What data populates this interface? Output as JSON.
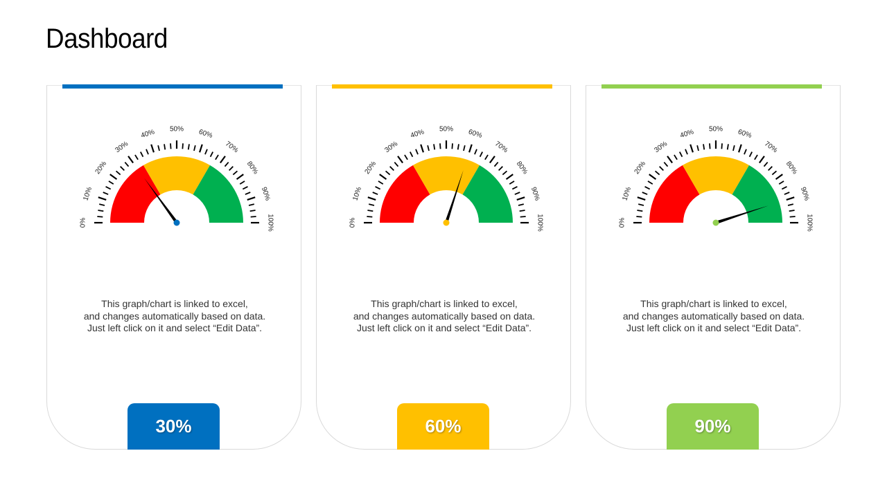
{
  "page": {
    "title": "Dashboard"
  },
  "chart_data": [
    {
      "type": "gauge",
      "value": 30,
      "accent": "#0070C0",
      "range": [
        0,
        100
      ],
      "ticks": [
        "0%",
        "10%",
        "20%",
        "30%",
        "40%",
        "50%",
        "60%",
        "70%",
        "80%",
        "90%",
        "100%"
      ],
      "bands": [
        {
          "from": 0,
          "to": 33.33,
          "color": "#FF0000"
        },
        {
          "from": 33.33,
          "to": 66.67,
          "color": "#FFC000"
        },
        {
          "from": 66.67,
          "to": 100,
          "color": "#00B050"
        }
      ],
      "label": "30%",
      "description": [
        "This graph/chart is linked to excel,",
        "and changes automatically based on data.",
        "Just left click on it and select “Edit Data”."
      ]
    },
    {
      "type": "gauge",
      "value": 60,
      "accent": "#FFC000",
      "range": [
        0,
        100
      ],
      "ticks": [
        "0%",
        "10%",
        "20%",
        "30%",
        "40%",
        "50%",
        "60%",
        "70%",
        "80%",
        "90%",
        "100%"
      ],
      "bands": [
        {
          "from": 0,
          "to": 33.33,
          "color": "#FF0000"
        },
        {
          "from": 33.33,
          "to": 66.67,
          "color": "#FFC000"
        },
        {
          "from": 66.67,
          "to": 100,
          "color": "#00B050"
        }
      ],
      "label": "60%",
      "description": [
        "This graph/chart is linked to excel,",
        "and changes automatically based on data.",
        "Just left click on it and select “Edit Data”."
      ]
    },
    {
      "type": "gauge",
      "value": 90,
      "accent": "#92D050",
      "range": [
        0,
        100
      ],
      "ticks": [
        "0%",
        "10%",
        "20%",
        "30%",
        "40%",
        "50%",
        "60%",
        "70%",
        "80%",
        "90%",
        "100%"
      ],
      "bands": [
        {
          "from": 0,
          "to": 33.33,
          "color": "#FF0000"
        },
        {
          "from": 33.33,
          "to": 66.67,
          "color": "#FFC000"
        },
        {
          "from": 66.67,
          "to": 100,
          "color": "#00B050"
        }
      ],
      "label": "90%",
      "description": [
        "This graph/chart is linked to excel,",
        "and changes automatically based on data.",
        "Just left click on it and select “Edit Data”."
      ]
    }
  ]
}
